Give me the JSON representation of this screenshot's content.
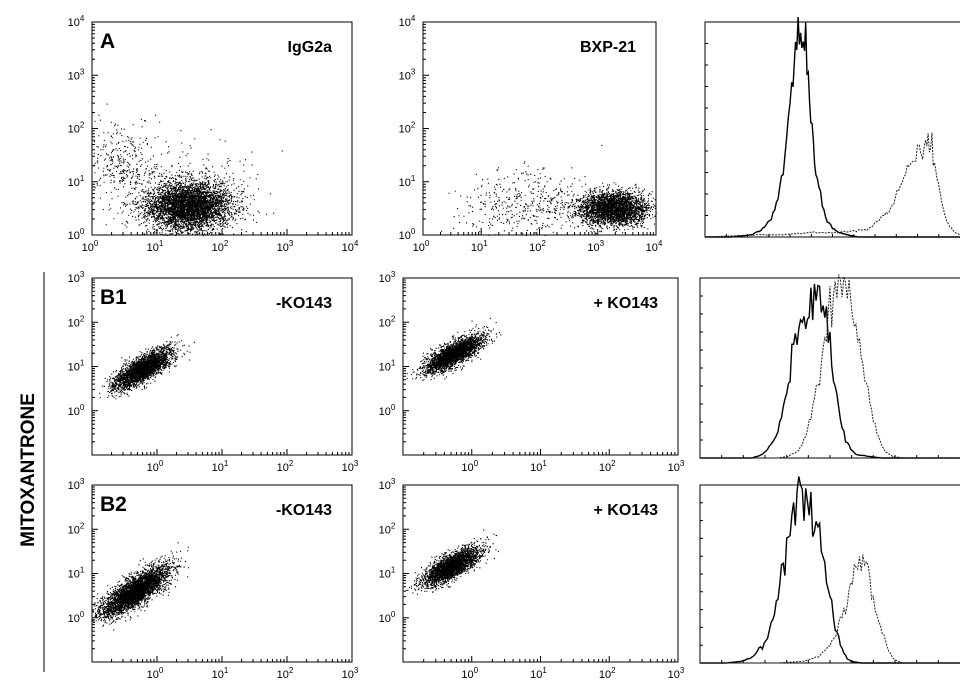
{
  "y_title": "MITOXANTRONE",
  "chart_data": [
    {
      "type": "scatter",
      "panel": "A",
      "label": "IgG2a",
      "xscale": "log",
      "yscale": "log",
      "xlim": [
        1,
        10000
      ],
      "ylim": [
        1,
        10000
      ],
      "xticks": [
        {
          "base": "10",
          "exp": "0"
        },
        {
          "base": "10",
          "exp": "1"
        },
        {
          "base": "10",
          "exp": "2"
        },
        {
          "base": "10",
          "exp": "3"
        },
        {
          "base": "10",
          "exp": "4"
        }
      ],
      "yticks": [
        {
          "base": "10",
          "exp": "0"
        },
        {
          "base": "10",
          "exp": "1"
        },
        {
          "base": "10",
          "exp": "2"
        },
        {
          "base": "10",
          "exp": "3"
        },
        {
          "base": "10",
          "exp": "4"
        }
      ],
      "clusters": [
        {
          "cx": 30,
          "cy": 3.5,
          "sx": 0.32,
          "sy": 0.22,
          "n": 4200
        },
        {
          "cx": 3,
          "cy": 25,
          "sx": 0.25,
          "sy": 0.35,
          "n": 280
        },
        {
          "cx": 25,
          "cy": 6,
          "sx": 0.55,
          "sy": 0.4,
          "n": 500
        }
      ]
    },
    {
      "type": "scatter",
      "panel": "",
      "label": "BXP-21",
      "xscale": "log",
      "yscale": "log",
      "xlim": [
        1,
        10000
      ],
      "ylim": [
        1,
        10000
      ],
      "xticks": [
        {
          "base": "10",
          "exp": "0"
        },
        {
          "base": "10",
          "exp": "1"
        },
        {
          "base": "10",
          "exp": "2"
        },
        {
          "base": "10",
          "exp": "3"
        },
        {
          "base": "10",
          "exp": "4"
        }
      ],
      "yticks": [
        {
          "base": "10",
          "exp": "0"
        },
        {
          "base": "10",
          "exp": "1"
        },
        {
          "base": "10",
          "exp": "2"
        },
        {
          "base": "10",
          "exp": "3"
        },
        {
          "base": "10",
          "exp": "4"
        }
      ],
      "clusters": [
        {
          "cx": 1800,
          "cy": 3.2,
          "sx": 0.3,
          "sy": 0.16,
          "n": 3000
        },
        {
          "cx": 60,
          "cy": 4,
          "sx": 0.6,
          "sy": 0.3,
          "n": 450
        }
      ]
    },
    {
      "type": "line",
      "panel": "",
      "label": "",
      "xlim": [
        0,
        100
      ],
      "ylim": [
        0,
        100
      ],
      "series": [
        {
          "x": [
            0,
            10,
            18,
            22,
            26,
            28,
            30,
            32,
            34,
            35,
            36,
            37,
            38,
            39,
            40,
            41,
            42,
            43,
            44,
            46,
            48,
            50,
            53,
            56,
            60,
            70,
            80,
            90,
            100
          ],
          "y": [
            0,
            0,
            1,
            3,
            8,
            15,
            28,
            48,
            70,
            82,
            94,
            98,
            100,
            92,
            80,
            64,
            50,
            38,
            28,
            16,
            8,
            4,
            2,
            1,
            0,
            0,
            0,
            0,
            0
          ]
        },
        {
          "x": [
            0,
            20,
            30,
            40,
            50,
            60,
            64,
            68,
            71,
            74,
            76,
            78,
            80,
            82,
            84,
            86,
            87,
            88,
            89,
            90,
            91,
            92,
            94,
            96,
            98,
            100
          ],
          "y": [
            0,
            1,
            1,
            2,
            2,
            3,
            4,
            7,
            11,
            16,
            22,
            28,
            33,
            38,
            42,
            45,
            46,
            44,
            40,
            34,
            28,
            20,
            10,
            5,
            2,
            1
          ]
        }
      ]
    },
    {
      "type": "scatter",
      "panel": "B1",
      "label": "-KO143",
      "xscale": "log",
      "yscale": "log",
      "xlim": [
        0.1,
        1000
      ],
      "ylim": [
        0.1,
        1000
      ],
      "xticks": [
        {
          "base": "10",
          "exp": "0"
        },
        {
          "base": "10",
          "exp": "1"
        },
        {
          "base": "10",
          "exp": "2"
        },
        {
          "base": "10",
          "exp": "3"
        }
      ],
      "yticks": [
        {
          "base": "10",
          "exp": "0"
        },
        {
          "base": "10",
          "exp": "1"
        },
        {
          "base": "10",
          "exp": "2"
        },
        {
          "base": "10",
          "exp": "3"
        }
      ],
      "clusters": [
        {
          "cx": 0.6,
          "cy": 9,
          "sx": 0.22,
          "sy": 0.22,
          "rho": 0.75,
          "n": 3000
        }
      ]
    },
    {
      "type": "scatter",
      "panel": "",
      "label": "+ KO143",
      "xscale": "log",
      "yscale": "log",
      "xlim": [
        0.1,
        1000
      ],
      "ylim": [
        0.1,
        1000
      ],
      "xticks": [
        {
          "base": "10",
          "exp": "0"
        },
        {
          "base": "10",
          "exp": "1"
        },
        {
          "base": "10",
          "exp": "2"
        },
        {
          "base": "10",
          "exp": "3"
        }
      ],
      "yticks": [
        {
          "base": "10",
          "exp": "0"
        },
        {
          "base": "10",
          "exp": "1"
        },
        {
          "base": "10",
          "exp": "2"
        },
        {
          "base": "10",
          "exp": "3"
        }
      ],
      "clusters": [
        {
          "cx": 0.55,
          "cy": 20,
          "sx": 0.2,
          "sy": 0.2,
          "rho": 0.75,
          "n": 3000
        }
      ]
    },
    {
      "type": "line",
      "panel": "",
      "label": "",
      "xlim": [
        0,
        100
      ],
      "ylim": [
        0,
        100
      ],
      "series": [
        {
          "x": [
            0,
            20,
            24,
            28,
            30,
            32,
            34,
            36,
            38,
            40,
            42,
            44,
            46,
            48,
            50,
            52,
            54,
            56,
            58,
            60,
            64,
            70,
            80,
            90,
            100
          ],
          "y": [
            0,
            0,
            2,
            8,
            16,
            28,
            44,
            60,
            72,
            80,
            86,
            90,
            88,
            80,
            62,
            40,
            22,
            10,
            5,
            2,
            1,
            0,
            0,
            0,
            0
          ]
        },
        {
          "x": [
            0,
            30,
            34,
            38,
            40,
            42,
            44,
            46,
            48,
            50,
            52,
            54,
            56,
            58,
            60,
            62,
            64,
            66,
            68,
            70,
            72,
            74,
            78,
            84,
            90,
            100
          ],
          "y": [
            0,
            0,
            1,
            4,
            10,
            20,
            34,
            50,
            66,
            80,
            92,
            100,
            94,
            84,
            70,
            55,
            40,
            26,
            14,
            7,
            3,
            1,
            0,
            0,
            0,
            0
          ]
        }
      ]
    },
    {
      "type": "scatter",
      "panel": "B2",
      "label": "-KO143",
      "xscale": "log",
      "yscale": "log",
      "xlim": [
        0.1,
        1000
      ],
      "ylim": [
        0.1,
        1000
      ],
      "xticks": [
        {
          "base": "10",
          "exp": "0"
        },
        {
          "base": "10",
          "exp": "1"
        },
        {
          "base": "10",
          "exp": "2"
        },
        {
          "base": "10",
          "exp": "3"
        }
      ],
      "yticks": [
        {
          "base": "10",
          "exp": "0"
        },
        {
          "base": "10",
          "exp": "1"
        },
        {
          "base": "10",
          "exp": "2"
        },
        {
          "base": "10",
          "exp": "3"
        }
      ],
      "clusters": [
        {
          "cx": 0.45,
          "cy": 4,
          "sx": 0.26,
          "sy": 0.28,
          "rho": 0.8,
          "n": 3800
        }
      ]
    },
    {
      "type": "scatter",
      "panel": "",
      "label": "+ KO143",
      "xscale": "log",
      "yscale": "log",
      "xlim": [
        0.1,
        1000
      ],
      "ylim": [
        0.1,
        1000
      ],
      "xticks": [
        {
          "base": "10",
          "exp": "0"
        },
        {
          "base": "10",
          "exp": "1"
        },
        {
          "base": "10",
          "exp": "2"
        },
        {
          "base": "10",
          "exp": "3"
        }
      ],
      "yticks": [
        {
          "base": "10",
          "exp": "0"
        },
        {
          "base": "10",
          "exp": "1"
        },
        {
          "base": "10",
          "exp": "2"
        },
        {
          "base": "10",
          "exp": "3"
        }
      ],
      "clusters": [
        {
          "cx": 0.5,
          "cy": 15,
          "sx": 0.2,
          "sy": 0.2,
          "rho": 0.75,
          "n": 3000
        }
      ]
    },
    {
      "type": "line",
      "panel": "",
      "label": "",
      "xlim": [
        0,
        100
      ],
      "ylim": [
        0,
        100
      ],
      "series": [
        {
          "x": [
            0,
            10,
            16,
            20,
            24,
            28,
            30,
            32,
            34,
            36,
            38,
            40,
            42,
            44,
            46,
            48,
            50,
            52,
            54,
            56,
            58,
            62,
            70,
            80,
            90,
            100
          ],
          "y": [
            0,
            0,
            1,
            3,
            10,
            24,
            38,
            54,
            70,
            84,
            94,
            100,
            96,
            86,
            72,
            56,
            38,
            22,
            10,
            4,
            1,
            0,
            0,
            0,
            0,
            0
          ]
        },
        {
          "x": [
            0,
            30,
            40,
            46,
            50,
            54,
            56,
            58,
            60,
            62,
            64,
            66,
            68,
            70,
            72,
            74,
            76,
            78,
            80,
            84,
            90,
            100
          ],
          "y": [
            0,
            0,
            1,
            4,
            10,
            24,
            34,
            44,
            52,
            56,
            52,
            42,
            30,
            18,
            8,
            3,
            1,
            0,
            0,
            0,
            0,
            0
          ]
        }
      ]
    }
  ]
}
